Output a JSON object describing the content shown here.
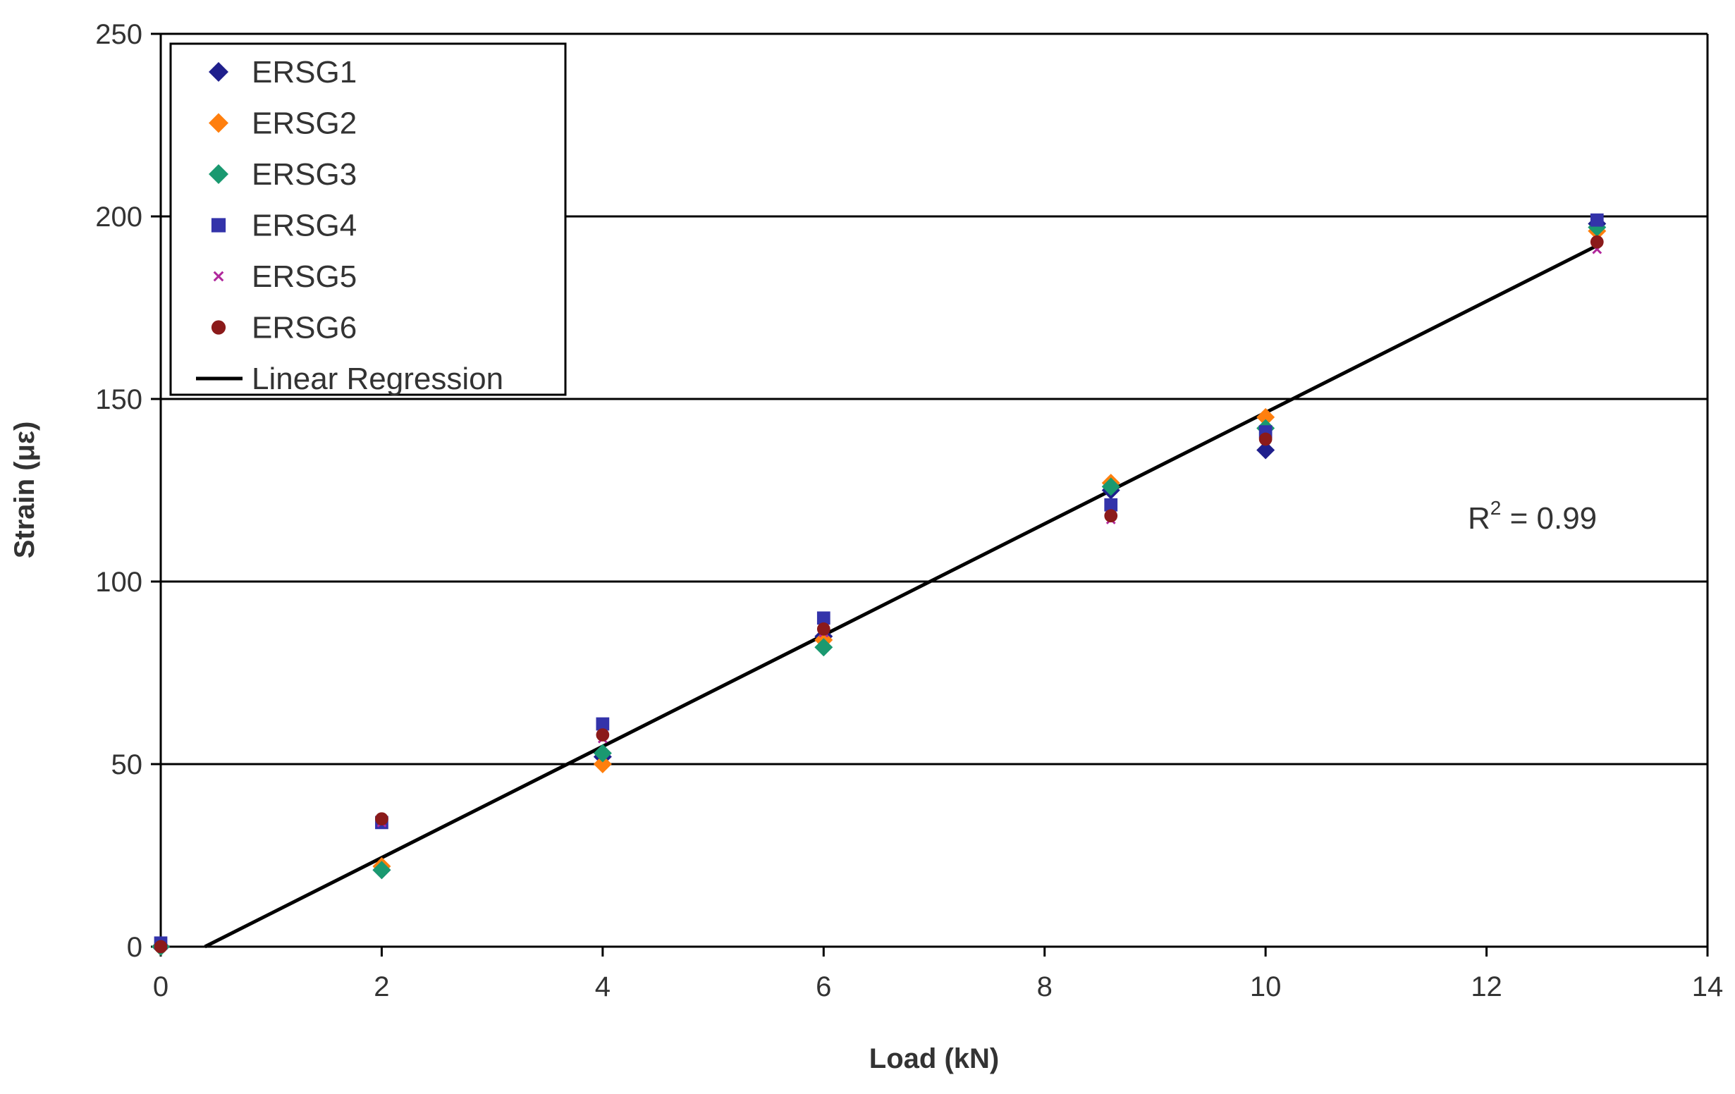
{
  "chart_data": {
    "type": "scatter",
    "title": "",
    "xlabel": "Load (kN)",
    "ylabel": "Strain (με)",
    "xlim": [
      0,
      14
    ],
    "ylim": [
      0,
      250
    ],
    "xticks": [
      0,
      2,
      4,
      6,
      8,
      10,
      12,
      14
    ],
    "yticks": [
      0,
      50,
      100,
      150,
      200,
      250
    ],
    "grid": "horizontal",
    "legend_position": "top-left",
    "annotation": {
      "text": "R² = 0.99",
      "base": "R",
      "sup": "2",
      "rest": " = 0.99"
    },
    "series": [
      {
        "name": "ERSG1",
        "marker": "diamond",
        "color": "#1f1f8c",
        "points": [
          [
            0,
            0
          ],
          [
            2,
            21
          ],
          [
            4,
            52
          ],
          [
            6,
            85
          ],
          [
            8.6,
            125
          ],
          [
            10,
            136
          ],
          [
            13,
            198
          ]
        ]
      },
      {
        "name": "ERSG2",
        "marker": "diamond",
        "color": "#ff7f0e",
        "points": [
          [
            0,
            0
          ],
          [
            2,
            22
          ],
          [
            4,
            50
          ],
          [
            6,
            84
          ],
          [
            8.6,
            127
          ],
          [
            10,
            145
          ],
          [
            13,
            196
          ]
        ]
      },
      {
        "name": "ERSG3",
        "marker": "diamond",
        "color": "#1a9970",
        "points": [
          [
            0,
            0
          ],
          [
            2,
            21
          ],
          [
            4,
            53
          ],
          [
            6,
            82
          ],
          [
            8.6,
            126
          ],
          [
            10,
            142
          ],
          [
            13,
            197
          ]
        ]
      },
      {
        "name": "ERSG4",
        "marker": "square",
        "color": "#3333aa",
        "points": [
          [
            0,
            1
          ],
          [
            2,
            34
          ],
          [
            4,
            61
          ],
          [
            6,
            90
          ],
          [
            8.6,
            121
          ],
          [
            10,
            141
          ],
          [
            13,
            199
          ]
        ]
      },
      {
        "name": "ERSG5",
        "marker": "cross",
        "color": "#b0279b",
        "points": [
          [
            0,
            0
          ],
          [
            2,
            34
          ],
          [
            4,
            57
          ],
          [
            6,
            86
          ],
          [
            8.6,
            117
          ],
          [
            10,
            139
          ],
          [
            13,
            191
          ]
        ]
      },
      {
        "name": "ERSG6",
        "marker": "circle",
        "color": "#8b1a1a",
        "points": [
          [
            0,
            0
          ],
          [
            2,
            35
          ],
          [
            4,
            58
          ],
          [
            6,
            87
          ],
          [
            8.6,
            118
          ],
          [
            10,
            139
          ],
          [
            13,
            193
          ]
        ]
      }
    ],
    "regression": {
      "name": "Linear Regression",
      "color": "#000000",
      "x": [
        0.4,
        13
      ],
      "y": [
        0,
        192
      ]
    }
  }
}
